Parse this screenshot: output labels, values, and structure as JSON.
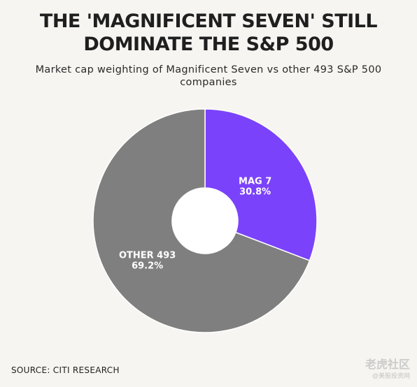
{
  "header": {
    "title_line1": "THE 'MAGNIFICENT SEVEN' STILL",
    "title_line2": "DOMINATE THE S&P 500",
    "subtitle_line1": "Market cap weighting of Magnificent Seven vs other 493 S&P 500",
    "subtitle_line2": "companies"
  },
  "chart_data": {
    "type": "pie",
    "style": "donut",
    "title": "THE 'MAGNIFICENT SEVEN' STILL DOMINATE THE S&P 500",
    "subtitle": "Market cap weighting of Magnificent Seven vs other 493 S&P 500 companies",
    "slices": [
      {
        "label": "MAG 7",
        "value": 30.8,
        "value_label": "30.8%",
        "color": "#7b42fb"
      },
      {
        "label": "OTHER 493",
        "value": 69.2,
        "value_label": "69.2%",
        "color": "#7f7f7f"
      }
    ],
    "start_angle": "12 o'clock",
    "direction": "clockwise",
    "legend": "none",
    "slice_border_color": "#ffffff"
  },
  "footer": {
    "source": "SOURCE: CITI RESEARCH"
  },
  "watermark": {
    "main": "老虎社区",
    "sub": "@美股投资网"
  },
  "colors": {
    "background": "#f6f5f1",
    "title_text": "#1f1f1f",
    "slice_label_text": "#ffffff"
  }
}
